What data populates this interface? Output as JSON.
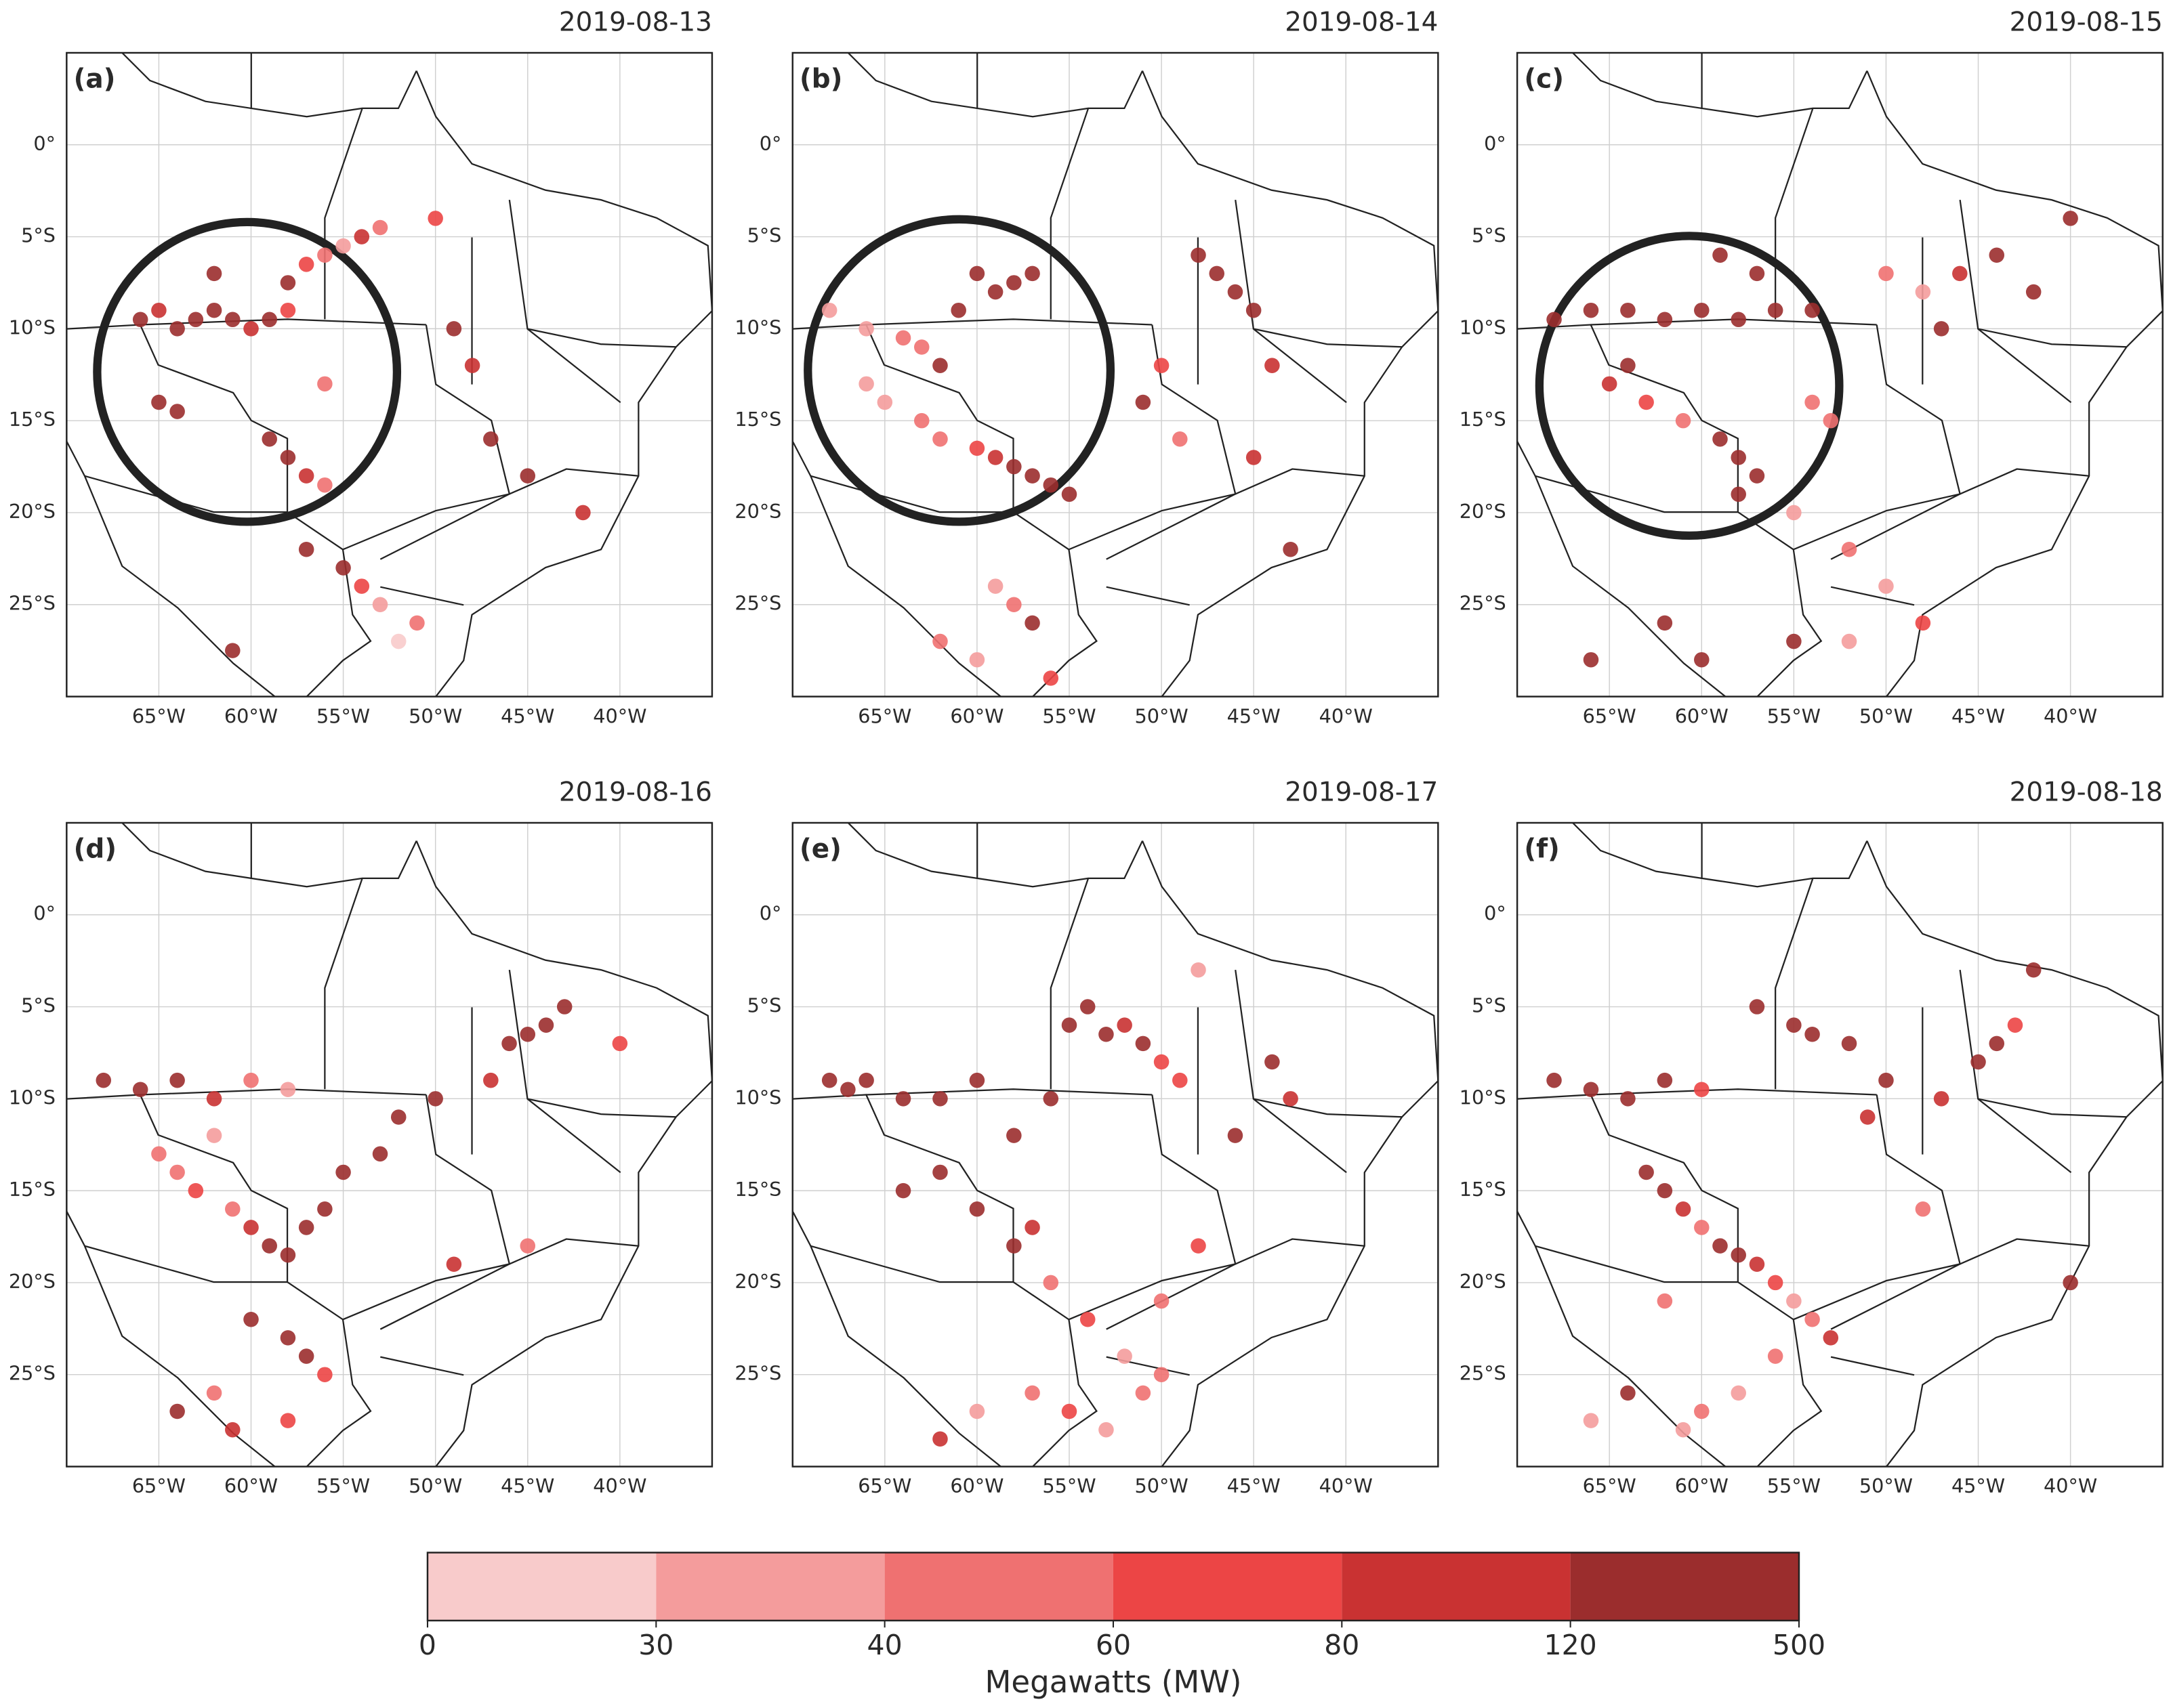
{
  "chart_data": [
    {
      "type": "scatter",
      "title": "2019-08-13",
      "panel_label": "(a)",
      "x": [
        -63,
        -62,
        -61,
        -60,
        -59,
        -58,
        -64,
        -65,
        -66,
        -62,
        -58,
        -57,
        -56,
        -55,
        -54,
        -53,
        -65,
        -64,
        -59,
        -58,
        -57,
        -56,
        -57,
        -55,
        -54,
        -53,
        -51,
        -52,
        -49,
        -48,
        -47,
        -45,
        -42,
        -50,
        -61,
        -56
      ],
      "y": [
        -9.5,
        -9,
        -9.5,
        -10,
        -9.5,
        -9,
        -10,
        -9,
        -9.5,
        -7,
        -7.5,
        -6.5,
        -6,
        -5.5,
        -5,
        -4.5,
        -14,
        -14.5,
        -16,
        -17,
        -18,
        -18.5,
        -22,
        -23,
        -24,
        -25,
        -26,
        -27,
        -10,
        -12,
        -16,
        -18,
        -20,
        -4,
        -27.5,
        -13
      ],
      "values": [
        250,
        300,
        150,
        90,
        200,
        70,
        300,
        100,
        200,
        250,
        150,
        70,
        50,
        35,
        100,
        45,
        200,
        150,
        300,
        250,
        100,
        55,
        150,
        200,
        70,
        35,
        45,
        25,
        150,
        100,
        250,
        150,
        100,
        70,
        300,
        50
      ],
      "xlim": [
        -70,
        -35
      ],
      "ylim": [
        -30,
        5
      ],
      "xticks": [
        {
          "value": -65,
          "label": "65°W"
        },
        {
          "value": -60,
          "label": "60°W"
        },
        {
          "value": -55,
          "label": "55°W"
        },
        {
          "value": -50,
          "label": "50°W"
        },
        {
          "value": -45,
          "label": "45°W"
        },
        {
          "value": -40,
          "label": "40°W"
        }
      ],
      "yticks": [
        {
          "value": 0,
          "label": "0°"
        },
        {
          "value": -5,
          "label": "5°S"
        },
        {
          "value": -10,
          "label": "10°S"
        },
        {
          "value": -15,
          "label": "15°S"
        },
        {
          "value": -20,
          "label": "20°S"
        },
        {
          "value": -25,
          "label": "25°S"
        }
      ],
      "grid": true
    },
    {
      "type": "scatter",
      "title": "2019-08-14",
      "panel_label": "(b)",
      "x": [
        -68,
        -66,
        -64,
        -63,
        -62,
        -61,
        -60,
        -59,
        -58,
        -57,
        -66,
        -65,
        -63,
        -62,
        -60,
        -59,
        -58,
        -57,
        -56,
        -55,
        -48,
        -47,
        -46,
        -45,
        -44,
        -50,
        -51,
        -49,
        -45,
        -43,
        -62,
        -60,
        -58,
        -57,
        -56,
        -59
      ],
      "y": [
        -9,
        -10,
        -10.5,
        -11,
        -12,
        -9,
        -7,
        -8,
        -7.5,
        -7,
        -13,
        -14,
        -15,
        -16,
        -16.5,
        -17,
        -17.5,
        -18,
        -18.5,
        -19,
        -6,
        -7,
        -8,
        -9,
        -12,
        -12,
        -14,
        -16,
        -17,
        -22,
        -27,
        -28,
        -25,
        -26,
        -29,
        -24
      ],
      "values": [
        30,
        35,
        40,
        50,
        150,
        250,
        300,
        200,
        250,
        300,
        35,
        30,
        40,
        45,
        60,
        100,
        150,
        250,
        200,
        300,
        200,
        150,
        300,
        250,
        100,
        70,
        150,
        45,
        100,
        250,
        50,
        35,
        40,
        150,
        60,
        30
      ],
      "xlim": [
        -70,
        -35
      ],
      "ylim": [
        -30,
        5
      ],
      "xticks": [
        {
          "value": -65,
          "label": "65°W"
        },
        {
          "value": -60,
          "label": "60°W"
        },
        {
          "value": -55,
          "label": "55°W"
        },
        {
          "value": -50,
          "label": "50°W"
        },
        {
          "value": -45,
          "label": "45°W"
        },
        {
          "value": -40,
          "label": "40°W"
        }
      ],
      "yticks": [
        {
          "value": 0,
          "label": "0°"
        },
        {
          "value": -5,
          "label": "5°S"
        },
        {
          "value": -10,
          "label": "10°S"
        },
        {
          "value": -15,
          "label": "15°S"
        },
        {
          "value": -20,
          "label": "20°S"
        },
        {
          "value": -25,
          "label": "25°S"
        }
      ],
      "grid": true
    },
    {
      "type": "scatter",
      "title": "2019-08-15",
      "panel_label": "(c)",
      "x": [
        -68,
        -66,
        -64,
        -62,
        -60,
        -58,
        -56,
        -54,
        -59,
        -57,
        -65,
        -63,
        -61,
        -64,
        -59,
        -58,
        -57,
        -58,
        -55,
        -53,
        -50,
        -48,
        -47,
        -46,
        -44,
        -42,
        -40,
        -52,
        -50,
        -48,
        -62,
        -60,
        -55,
        -52,
        -66,
        -54
      ],
      "y": [
        -9.5,
        -9,
        -9,
        -9.5,
        -9,
        -9.5,
        -9,
        -9,
        -6,
        -7,
        -13,
        -14,
        -15,
        -12,
        -16,
        -17,
        -18,
        -19,
        -20,
        -15,
        -7,
        -8,
        -10,
        -7,
        -6,
        -8,
        -4,
        -22,
        -24,
        -26,
        -26,
        -28,
        -27,
        -27,
        -28,
        -14
      ],
      "values": [
        300,
        250,
        200,
        300,
        250,
        150,
        300,
        200,
        300,
        150,
        100,
        60,
        45,
        200,
        300,
        250,
        200,
        150,
        35,
        50,
        40,
        35,
        150,
        100,
        200,
        150,
        300,
        45,
        30,
        60,
        300,
        300,
        250,
        30,
        250,
        45
      ],
      "xlim": [
        -70,
        -35
      ],
      "ylim": [
        -30,
        5
      ],
      "xticks": [
        {
          "value": -65,
          "label": "65°W"
        },
        {
          "value": -60,
          "label": "60°W"
        },
        {
          "value": -55,
          "label": "55°W"
        },
        {
          "value": -50,
          "label": "50°W"
        },
        {
          "value": -45,
          "label": "45°W"
        },
        {
          "value": -40,
          "label": "40°W"
        }
      ],
      "yticks": [
        {
          "value": 0,
          "label": "0°"
        },
        {
          "value": -5,
          "label": "5°S"
        },
        {
          "value": -10,
          "label": "10°S"
        },
        {
          "value": -15,
          "label": "15°S"
        },
        {
          "value": -20,
          "label": "20°S"
        },
        {
          "value": -25,
          "label": "25°S"
        }
      ],
      "grid": true
    },
    {
      "type": "scatter",
      "title": "2019-08-16",
      "panel_label": "(d)",
      "x": [
        -68,
        -66,
        -64,
        -62,
        -60,
        -58,
        -65,
        -64,
        -63,
        -62,
        -61,
        -60,
        -59,
        -58,
        -57,
        -56,
        -44,
        -45,
        -46,
        -43,
        -47,
        -50,
        -53,
        -55,
        -60,
        -58,
        -57,
        -56,
        -62,
        -61,
        -64,
        -58,
        -49,
        -45,
        -52,
        -40
      ],
      "y": [
        -9,
        -9.5,
        -9,
        -10,
        -9,
        -9.5,
        -13,
        -14,
        -15,
        -12,
        -16,
        -17,
        -18,
        -18.5,
        -17,
        -16,
        -6,
        -6.5,
        -7,
        -5,
        -9,
        -10,
        -13,
        -14,
        -22,
        -23,
        -24,
        -25,
        -26,
        -28,
        -27,
        -27.5,
        -19,
        -18,
        -11,
        -7
      ],
      "values": [
        300,
        150,
        200,
        100,
        45,
        35,
        50,
        40,
        60,
        35,
        50,
        100,
        150,
        300,
        200,
        250,
        250,
        300,
        200,
        150,
        100,
        200,
        250,
        300,
        150,
        200,
        250,
        60,
        45,
        100,
        250,
        70,
        100,
        45,
        300,
        70
      ],
      "xlim": [
        -70,
        -35
      ],
      "ylim": [
        -30,
        5
      ],
      "xticks": [
        {
          "value": -65,
          "label": "65°W"
        },
        {
          "value": -60,
          "label": "60°W"
        },
        {
          "value": -55,
          "label": "55°W"
        },
        {
          "value": -50,
          "label": "50°W"
        },
        {
          "value": -45,
          "label": "45°W"
        },
        {
          "value": -40,
          "label": "40°W"
        }
      ],
      "yticks": [
        {
          "value": 0,
          "label": "0°"
        },
        {
          "value": -5,
          "label": "5°S"
        },
        {
          "value": -10,
          "label": "10°S"
        },
        {
          "value": -15,
          "label": "15°S"
        },
        {
          "value": -20,
          "label": "20°S"
        },
        {
          "value": -25,
          "label": "25°S"
        }
      ],
      "grid": true
    },
    {
      "type": "scatter",
      "title": "2019-08-17",
      "panel_label": "(e)",
      "x": [
        -68,
        -67,
        -66,
        -64,
        -62,
        -60,
        -58,
        -56,
        -55,
        -54,
        -53,
        -52,
        -51,
        -50,
        -49,
        -60,
        -62,
        -64,
        -58,
        -57,
        -56,
        -54,
        -52,
        -50,
        -48,
        -46,
        -44,
        -43,
        -57,
        -55,
        -53,
        -51,
        -50,
        -60,
        -62,
        -48
      ],
      "y": [
        -9,
        -9.5,
        -9,
        -10,
        -10,
        -9,
        -12,
        -10,
        -6,
        -5,
        -6.5,
        -6,
        -7,
        -8,
        -9,
        -16,
        -14,
        -15,
        -18,
        -17,
        -20,
        -22,
        -24,
        -25,
        -18,
        -12,
        -8,
        -10,
        -26,
        -27,
        -28,
        -26,
        -21,
        -27,
        -28.5,
        -3
      ],
      "values": [
        300,
        250,
        300,
        250,
        300,
        250,
        200,
        250,
        200,
        150,
        250,
        100,
        150,
        70,
        60,
        250,
        300,
        200,
        150,
        100,
        45,
        60,
        35,
        50,
        70,
        150,
        250,
        100,
        45,
        60,
        30,
        50,
        40,
        30,
        100,
        35
      ],
      "xlim": [
        -70,
        -35
      ],
      "ylim": [
        -30,
        5
      ],
      "xticks": [
        {
          "value": -65,
          "label": "65°W"
        },
        {
          "value": -60,
          "label": "60°W"
        },
        {
          "value": -55,
          "label": "55°W"
        },
        {
          "value": -50,
          "label": "50°W"
        },
        {
          "value": -45,
          "label": "45°W"
        },
        {
          "value": -40,
          "label": "40°W"
        }
      ],
      "yticks": [
        {
          "value": 0,
          "label": "0°"
        },
        {
          "value": -5,
          "label": "5°S"
        },
        {
          "value": -10,
          "label": "10°S"
        },
        {
          "value": -15,
          "label": "15°S"
        },
        {
          "value": -20,
          "label": "20°S"
        },
        {
          "value": -25,
          "label": "25°S"
        }
      ],
      "grid": true
    },
    {
      "type": "scatter",
      "title": "2019-08-18",
      "panel_label": "(f)",
      "x": [
        -68,
        -66,
        -64,
        -62,
        -60,
        -63,
        -62,
        -61,
        -60,
        -59,
        -58,
        -57,
        -56,
        -55,
        -54,
        -53,
        -57,
        -55,
        -54,
        -52,
        -50,
        -47,
        -45,
        -42,
        -40,
        -43,
        -48,
        -56,
        -58,
        -60,
        -64,
        -61,
        -66,
        -62,
        -51,
        -44
      ],
      "y": [
        -9,
        -9.5,
        -10,
        -9,
        -9.5,
        -14,
        -15,
        -16,
        -17,
        -18,
        -18.5,
        -19,
        -20,
        -21,
        -22,
        -23,
        -5,
        -6,
        -6.5,
        -7,
        -9,
        -10,
        -8,
        -3,
        -20,
        -6,
        -16,
        -24,
        -26,
        -27,
        -26,
        -28,
        -27.5,
        -21,
        -11,
        -7
      ],
      "values": [
        250,
        300,
        200,
        150,
        60,
        250,
        200,
        100,
        45,
        150,
        200,
        100,
        60,
        35,
        50,
        100,
        250,
        300,
        200,
        150,
        250,
        100,
        300,
        250,
        200,
        60,
        50,
        45,
        30,
        45,
        250,
        30,
        35,
        50,
        100,
        250
      ],
      "xlim": [
        -70,
        -35
      ],
      "ylim": [
        -30,
        5
      ],
      "xticks": [
        {
          "value": -65,
          "label": "65°W"
        },
        {
          "value": -60,
          "label": "60°W"
        },
        {
          "value": -55,
          "label": "55°W"
        },
        {
          "value": -50,
          "label": "50°W"
        },
        {
          "value": -45,
          "label": "45°W"
        },
        {
          "value": -40,
          "label": "40°W"
        }
      ],
      "yticks": [
        {
          "value": 0,
          "label": "0°"
        },
        {
          "value": -5,
          "label": "5°S"
        },
        {
          "value": -10,
          "label": "10°S"
        },
        {
          "value": -15,
          "label": "15°S"
        },
        {
          "value": -20,
          "label": "20°S"
        },
        {
          "value": -25,
          "label": "25°S"
        }
      ],
      "grid": true
    }
  ],
  "colorbar": {
    "label": "Megawatts (MW)",
    "boundaries": [
      0,
      30,
      40,
      60,
      80,
      120,
      500
    ],
    "colors": [
      "#f8cbcb",
      "#f49c9c",
      "#ef7171",
      "#ec4545",
      "#c93232",
      "#9b2d2d"
    ]
  }
}
